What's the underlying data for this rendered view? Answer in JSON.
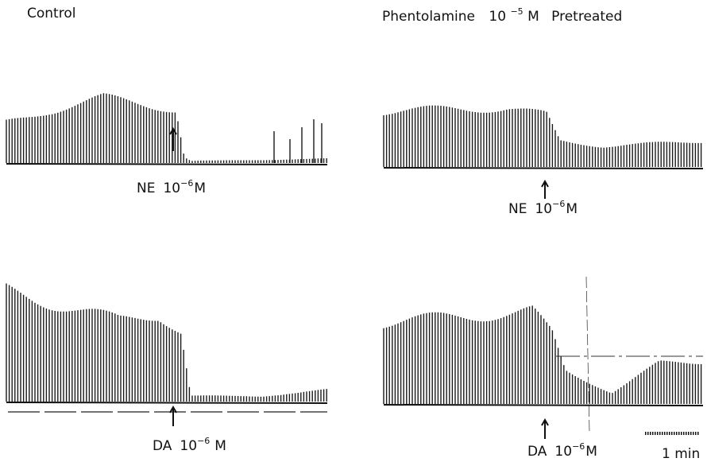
{
  "header": {
    "left": "Control",
    "right": {
      "name": "Phentolamine",
      "base": "10",
      "exponent": "−5",
      "unit": "M",
      "suffix": "Pretreated"
    }
  },
  "panels": [
    {
      "drug": "NE",
      "base": "10",
      "exponent": "−6",
      "unit": "M"
    },
    {
      "drug": "NE",
      "base": "10",
      "exponent": "−6",
      "unit": "M"
    },
    {
      "drug": "DA",
      "base": "10",
      "exponent": "−6",
      "unit": "M"
    },
    {
      "drug": "DA",
      "base": "10",
      "exponent": "−6",
      "unit": "M"
    }
  ],
  "scale_bar": "1 min"
}
